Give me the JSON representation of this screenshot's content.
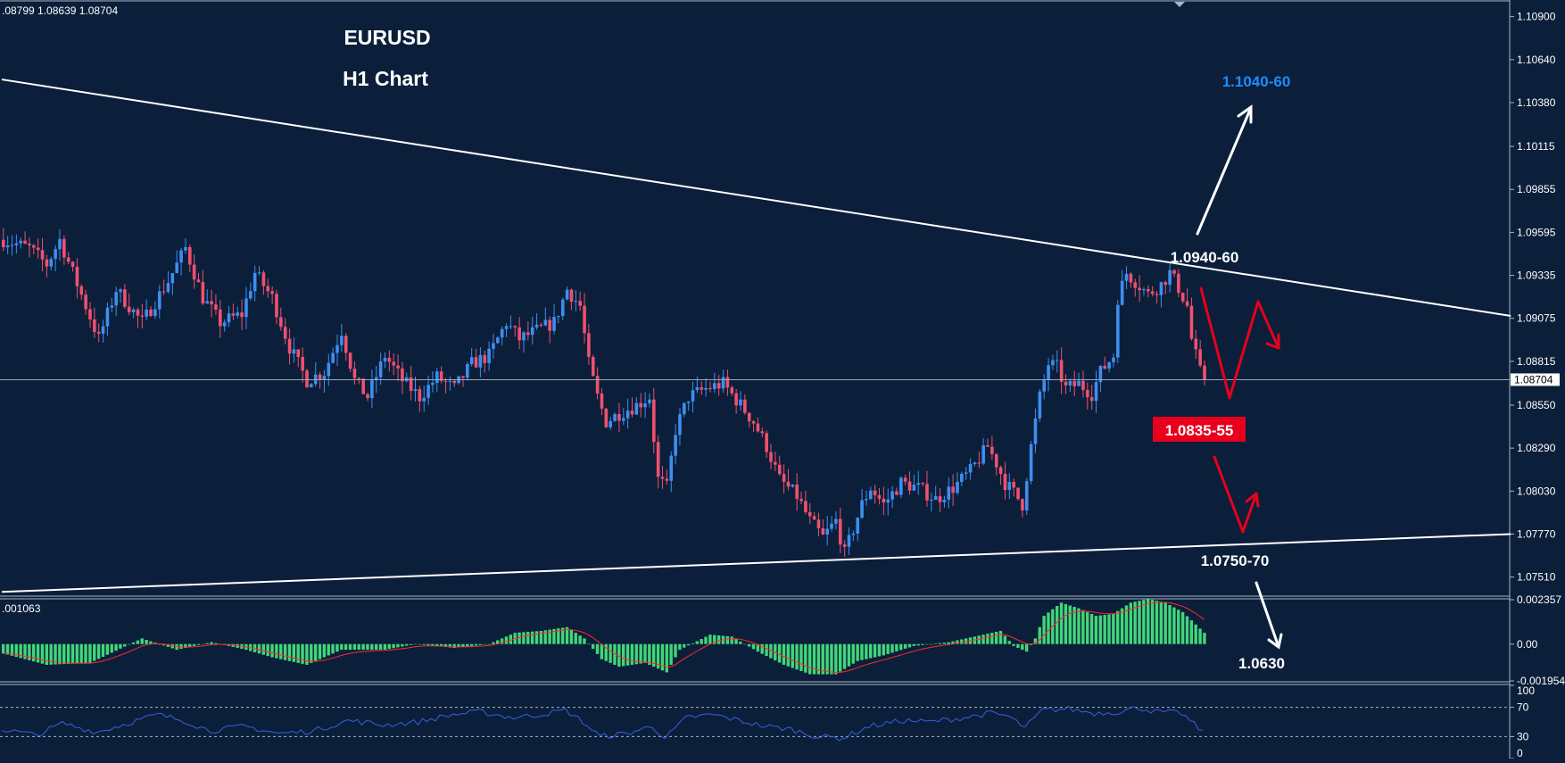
{
  "header": {
    "symbol": "EURUSD",
    "timeframe": "H1 Chart",
    "ohlc_readout": ".08799 1.08639 1.08704"
  },
  "colors": {
    "background": "#0b1f3a",
    "bull": "#3d8ef0",
    "bear": "#f0506e",
    "trendline": "#ffffff",
    "macd_hist": "#41d67a",
    "macd_signal": "#ff2a2a",
    "rsi": "#3a5fe0",
    "target_up": "#1f8cff",
    "target_down_bg": "#e8001c",
    "arrow_red": "#e8001c"
  },
  "chart_data": [
    {
      "type": "candlestick",
      "title": "EURUSD",
      "subtitle": "H1 Chart",
      "ylim": [
        1.074,
        1.1099
      ],
      "y_ticks": [
        "1.10900",
        "1.10640",
        "1.10380",
        "1.10115",
        "1.09855",
        "1.09595",
        "1.09335",
        "1.09075",
        "1.08815",
        "1.08550",
        "1.08290",
        "1.08030",
        "1.07770",
        "1.07510"
      ],
      "last_price": "1.08704",
      "close_path": [
        [
          0,
          1.0955
        ],
        [
          6,
          1.095
        ],
        [
          10,
          1.094
        ],
        [
          13,
          1.0955
        ],
        [
          16,
          1.0935
        ],
        [
          19,
          1.0915
        ],
        [
          22,
          1.0895
        ],
        [
          26,
          1.0925
        ],
        [
          32,
          1.0905
        ],
        [
          38,
          1.093
        ],
        [
          42,
          1.095
        ],
        [
          46,
          1.092
        ],
        [
          50,
          1.0905
        ],
        [
          55,
          1.091
        ],
        [
          58,
          1.0935
        ],
        [
          62,
          1.092
        ],
        [
          66,
          1.089
        ],
        [
          70,
          1.087
        ],
        [
          74,
          1.0875
        ],
        [
          78,
          1.09
        ],
        [
          81,
          1.087
        ],
        [
          84,
          1.086
        ],
        [
          88,
          1.0885
        ],
        [
          92,
          1.087
        ],
        [
          96,
          1.086
        ],
        [
          100,
          1.0872
        ],
        [
          104,
          1.0865
        ],
        [
          108,
          1.088
        ],
        [
          112,
          1.0885
        ],
        [
          116,
          1.0905
        ],
        [
          119,
          1.0895
        ],
        [
          123,
          1.09
        ],
        [
          127,
          1.0905
        ],
        [
          130,
          1.0925
        ],
        [
          133,
          1.0915
        ],
        [
          135,
          1.088
        ],
        [
          137,
          1.086
        ],
        [
          139,
          1.0845
        ],
        [
          142,
          1.085
        ],
        [
          146,
          1.0855
        ],
        [
          149,
          1.086
        ],
        [
          151,
          1.081
        ],
        [
          153,
          1.0805
        ],
        [
          155,
          1.084
        ],
        [
          158,
          1.086
        ],
        [
          162,
          1.0865
        ],
        [
          166,
          1.0868
        ],
        [
          170,
          1.0855
        ],
        [
          173,
          1.0845
        ],
        [
          176,
          1.083
        ],
        [
          179,
          1.081
        ],
        [
          183,
          1.08
        ],
        [
          186,
          1.0785
        ],
        [
          189,
          1.0775
        ],
        [
          192,
          1.0785
        ],
        [
          194,
          1.0765
        ],
        [
          196,
          1.078
        ],
        [
          198,
          1.0795
        ],
        [
          200,
          1.0805
        ],
        [
          203,
          1.0795
        ],
        [
          207,
          1.0808
        ],
        [
          211,
          1.0805
        ],
        [
          215,
          1.0798
        ],
        [
          219,
          1.0805
        ],
        [
          223,
          1.0815
        ],
        [
          227,
          1.083
        ],
        [
          229,
          1.082
        ],
        [
          231,
          1.0808
        ],
        [
          233,
          1.0802
        ],
        [
          235,
          1.0795
        ],
        [
          237,
          1.083
        ],
        [
          239,
          1.086
        ],
        [
          241,
          1.088
        ],
        [
          243,
          1.0878
        ],
        [
          245,
          1.0865
        ],
        [
          248,
          1.0868
        ],
        [
          251,
          1.0862
        ],
        [
          253,
          1.0875
        ],
        [
          256,
          1.0885
        ],
        [
          257,
          1.092
        ],
        [
          259,
          1.0935
        ],
        [
          261,
          1.093
        ],
        [
          264,
          1.0922
        ],
        [
          267,
          1.0928
        ],
        [
          269,
          1.0935
        ],
        [
          271,
          1.0926
        ],
        [
          273,
          1.0915
        ],
        [
          274,
          1.0895
        ],
        [
          276,
          1.0875
        ],
        [
          277,
          1.08704
        ]
      ],
      "trendlines": [
        {
          "name": "descending resistance",
          "from": [
            0,
            1.1052
          ],
          "to": [
            348,
            1.0909
          ]
        },
        {
          "name": "ascending support",
          "from": [
            0,
            1.0742
          ],
          "to": [
            348,
            1.0777
          ]
        }
      ],
      "annotations": [
        "1.1040-60",
        "1.0940-60",
        "1.0835-55",
        "1.0750-70",
        "1.0630"
      ]
    },
    {
      "type": "bar",
      "name": "MACD",
      "readout": ".001063",
      "ylim": [
        -0.001954,
        0.002357
      ],
      "y_ticks": [
        "0.002357",
        "0.00",
        "-0.001954"
      ],
      "hist_path": [
        [
          0,
          -0.0005
        ],
        [
          10,
          -0.0011
        ],
        [
          20,
          -0.001
        ],
        [
          32,
          0.0003
        ],
        [
          40,
          -0.0003
        ],
        [
          48,
          0.0001
        ],
        [
          56,
          -0.0003
        ],
        [
          62,
          -0.0007
        ],
        [
          70,
          -0.0011
        ],
        [
          78,
          -0.0003
        ],
        [
          88,
          -0.0003
        ],
        [
          95,
          0.0
        ],
        [
          104,
          -0.0002
        ],
        [
          112,
          0.0
        ],
        [
          118,
          0.0006
        ],
        [
          124,
          0.0007
        ],
        [
          130,
          0.0009
        ],
        [
          134,
          0.0003
        ],
        [
          138,
          -0.0008
        ],
        [
          142,
          -0.0012
        ],
        [
          148,
          -0.001
        ],
        [
          153,
          -0.0015
        ],
        [
          156,
          -0.0003
        ],
        [
          163,
          0.0005
        ],
        [
          168,
          0.0004
        ],
        [
          174,
          -0.0004
        ],
        [
          180,
          -0.0011
        ],
        [
          186,
          -0.0016
        ],
        [
          192,
          -0.0016
        ],
        [
          197,
          -0.0009
        ],
        [
          203,
          -0.0006
        ],
        [
          210,
          -0.0001
        ],
        [
          218,
          0.0001
        ],
        [
          224,
          0.0004
        ],
        [
          230,
          0.0007
        ],
        [
          233,
          -0.0001
        ],
        [
          236,
          -0.0004
        ],
        [
          238,
          0.0003
        ],
        [
          240,
          0.0015
        ],
        [
          244,
          0.0022
        ],
        [
          248,
          0.0019
        ],
        [
          252,
          0.0015
        ],
        [
          256,
          0.0016
        ],
        [
          260,
          0.0022
        ],
        [
          264,
          0.0024
        ],
        [
          268,
          0.0022
        ],
        [
          272,
          0.0017
        ],
        [
          277,
          0.0006
        ]
      ]
    },
    {
      "type": "line",
      "name": "RSI",
      "ylim": [
        0,
        100
      ],
      "y_ticks": [
        "100",
        "70",
        "30",
        "0"
      ],
      "levels": [
        70,
        30
      ],
      "rsi_path": [
        [
          0,
          40
        ],
        [
          8,
          32
        ],
        [
          14,
          48
        ],
        [
          22,
          36
        ],
        [
          30,
          50
        ],
        [
          36,
          60
        ],
        [
          42,
          52
        ],
        [
          48,
          38
        ],
        [
          56,
          44
        ],
        [
          64,
          34
        ],
        [
          72,
          38
        ],
        [
          80,
          52
        ],
        [
          88,
          46
        ],
        [
          96,
          50
        ],
        [
          104,
          60
        ],
        [
          110,
          64
        ],
        [
          118,
          56
        ],
        [
          124,
          60
        ],
        [
          130,
          66
        ],
        [
          134,
          50
        ],
        [
          138,
          30
        ],
        [
          144,
          34
        ],
        [
          150,
          44
        ],
        [
          153,
          28
        ],
        [
          158,
          56
        ],
        [
          164,
          60
        ],
        [
          170,
          52
        ],
        [
          176,
          44
        ],
        [
          182,
          40
        ],
        [
          188,
          30
        ],
        [
          194,
          28
        ],
        [
          200,
          44
        ],
        [
          208,
          52
        ],
        [
          214,
          50
        ],
        [
          222,
          56
        ],
        [
          228,
          62
        ],
        [
          232,
          58
        ],
        [
          236,
          42
        ],
        [
          240,
          66
        ],
        [
          246,
          68
        ],
        [
          252,
          62
        ],
        [
          258,
          64
        ],
        [
          262,
          70
        ],
        [
          266,
          64
        ],
        [
          272,
          62
        ],
        [
          277,
          36
        ]
      ]
    }
  ]
}
